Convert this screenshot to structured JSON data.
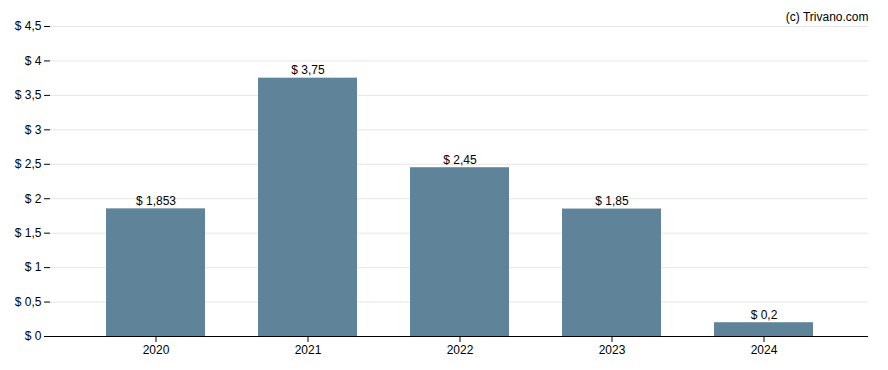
{
  "chart_data": {
    "type": "bar",
    "categories": [
      "2020",
      "2021",
      "2022",
      "2023",
      "2024"
    ],
    "values": [
      1.853,
      3.75,
      2.45,
      1.85,
      0.2
    ],
    "value_labels": [
      "$ 1,853",
      "$ 3,75",
      "$ 2,45",
      "$ 1,85",
      "$ 0,2"
    ],
    "data_labels": true,
    "color": "#5f8398",
    "ylim": [
      0,
      4.5
    ],
    "yticks": [
      {
        "value": 0,
        "label": "$ 0"
      },
      {
        "value": 0.5,
        "label": "$ 0,5"
      },
      {
        "value": 1.0,
        "label": "$ 1"
      },
      {
        "value": 1.5,
        "label": "$ 1,5"
      },
      {
        "value": 2.0,
        "label": "$ 2"
      },
      {
        "value": 2.5,
        "label": "$ 2,5"
      },
      {
        "value": 3.0,
        "label": "$ 3"
      },
      {
        "value": 3.5,
        "label": "$ 3,5"
      },
      {
        "value": 4.0,
        "label": "$ 4"
      },
      {
        "value": 4.5,
        "label": "$ 4,5"
      }
    ],
    "grid": true,
    "annotations": [
      "(c) Trivano.com"
    ]
  }
}
